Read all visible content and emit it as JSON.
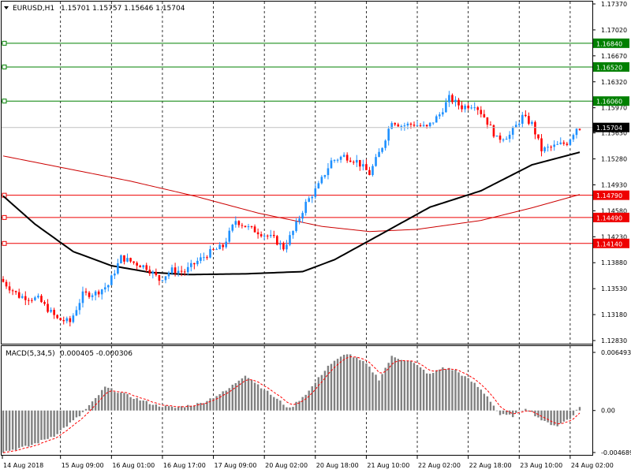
{
  "header": {
    "symbol_timeframe": "EURUSD,H1",
    "ohlc": "1.15701 1.15757 1.15646 1.15704"
  },
  "colors": {
    "background": "#ffffff",
    "grid": "#000000",
    "candle_up": "#1e90ff",
    "candle_down": "#ff0000",
    "ma_fast": "#000000",
    "ma_slow": "#cc0000",
    "support_line": "#ee0000",
    "resistance_line": "#008000",
    "macd_hist": "#808080",
    "macd_signal": "#ff0000"
  },
  "chart_data": [
    {
      "type": "candlestick",
      "symbol": "EURUSD",
      "timeframe": "H1",
      "ylim": [
        1.1283,
        1.1737
      ],
      "y_ticks": [
        "1.17370",
        "1.17020",
        "1.16670",
        "1.16320",
        "1.15970",
        "1.15630",
        "1.15280",
        "1.14930",
        "1.14580",
        "1.14230",
        "1.13880",
        "1.13530",
        "1.13180",
        "1.12830"
      ],
      "x_tick_labels": [
        "14 Aug 2018",
        "15 Aug 09:00",
        "16 Aug 01:00",
        "16 Aug 17:00",
        "17 Aug 09:00",
        "20 Aug 02:00",
        "20 Aug 18:00",
        "21 Aug 10:00",
        "22 Aug 02:00",
        "22 Aug 18:00",
        "23 Aug 10:00",
        "24 Aug 02:00"
      ],
      "price_anchors": [
        {
          "bar": 0,
          "price": 1.1366
        },
        {
          "bar": 6,
          "price": 1.1343
        },
        {
          "bar": 12,
          "price": 1.1339
        },
        {
          "bar": 18,
          "price": 1.1312
        },
        {
          "bar": 22,
          "price": 1.1308
        },
        {
          "bar": 26,
          "price": 1.1345
        },
        {
          "bar": 30,
          "price": 1.1347
        },
        {
          "bar": 34,
          "price": 1.1358
        },
        {
          "bar": 38,
          "price": 1.1395
        },
        {
          "bar": 42,
          "price": 1.1388
        },
        {
          "bar": 46,
          "price": 1.1382
        },
        {
          "bar": 50,
          "price": 1.1365
        },
        {
          "bar": 54,
          "price": 1.1378
        },
        {
          "bar": 58,
          "price": 1.1376
        },
        {
          "bar": 62,
          "price": 1.139
        },
        {
          "bar": 66,
          "price": 1.1402
        },
        {
          "bar": 70,
          "price": 1.141
        },
        {
          "bar": 74,
          "price": 1.1445
        },
        {
          "bar": 78,
          "price": 1.1435
        },
        {
          "bar": 82,
          "price": 1.1428
        },
        {
          "bar": 86,
          "price": 1.142
        },
        {
          "bar": 89,
          "price": 1.1408
        },
        {
          "bar": 92,
          "price": 1.143
        },
        {
          "bar": 96,
          "price": 1.1468
        },
        {
          "bar": 100,
          "price": 1.1492
        },
        {
          "bar": 104,
          "price": 1.1525
        },
        {
          "bar": 108,
          "price": 1.1532
        },
        {
          "bar": 112,
          "price": 1.1525
        },
        {
          "bar": 116,
          "price": 1.1508
        },
        {
          "bar": 120,
          "price": 1.1545
        },
        {
          "bar": 123,
          "price": 1.158
        },
        {
          "bar": 126,
          "price": 1.1573
        },
        {
          "bar": 130,
          "price": 1.1575
        },
        {
          "bar": 134,
          "price": 1.157
        },
        {
          "bar": 138,
          "price": 1.1588
        },
        {
          "bar": 141,
          "price": 1.161
        },
        {
          "bar": 145,
          "price": 1.1598
        },
        {
          "bar": 149,
          "price": 1.1602
        },
        {
          "bar": 152,
          "price": 1.1585
        },
        {
          "bar": 156,
          "price": 1.1555
        },
        {
          "bar": 160,
          "price": 1.156
        },
        {
          "bar": 164,
          "price": 1.1585
        },
        {
          "bar": 167,
          "price": 1.1575
        },
        {
          "bar": 170,
          "price": 1.154
        },
        {
          "bar": 174,
          "price": 1.1545
        },
        {
          "bar": 178,
          "price": 1.155
        },
        {
          "bar": 181,
          "price": 1.157
        }
      ],
      "ma_fast": [
        {
          "bar": 0,
          "price": 1.1478
        },
        {
          "bar": 10,
          "price": 1.144
        },
        {
          "bar": 22,
          "price": 1.1403
        },
        {
          "bar": 34,
          "price": 1.1384
        },
        {
          "bar": 46,
          "price": 1.1375
        },
        {
          "bar": 58,
          "price": 1.1372
        },
        {
          "bar": 76,
          "price": 1.1373
        },
        {
          "bar": 94,
          "price": 1.1376
        },
        {
          "bar": 104,
          "price": 1.1392
        },
        {
          "bar": 118,
          "price": 1.1425
        },
        {
          "bar": 134,
          "price": 1.1463
        },
        {
          "bar": 150,
          "price": 1.1485
        },
        {
          "bar": 166,
          "price": 1.152
        },
        {
          "bar": 181,
          "price": 1.1537
        }
      ],
      "ma_slow": [
        {
          "bar": 0,
          "price": 1.1532
        },
        {
          "bar": 20,
          "price": 1.1515
        },
        {
          "bar": 40,
          "price": 1.1498
        },
        {
          "bar": 60,
          "price": 1.1478
        },
        {
          "bar": 80,
          "price": 1.1455
        },
        {
          "bar": 100,
          "price": 1.1437
        },
        {
          "bar": 115,
          "price": 1.143
        },
        {
          "bar": 130,
          "price": 1.1433
        },
        {
          "bar": 150,
          "price": 1.1445
        },
        {
          "bar": 166,
          "price": 1.1462
        },
        {
          "bar": 181,
          "price": 1.148
        }
      ],
      "horizontal_levels": [
        {
          "price": 1.1684,
          "label": "1.16840",
          "kind": "resistance"
        },
        {
          "price": 1.1652,
          "label": "1.16520",
          "kind": "resistance"
        },
        {
          "price": 1.1606,
          "label": "1.16060",
          "kind": "resistance"
        },
        {
          "price": 1.1479,
          "label": "1.14790",
          "kind": "support"
        },
        {
          "price": 1.1449,
          "label": "1.14490",
          "kind": "support"
        },
        {
          "price": 1.1414,
          "label": "1.14140",
          "kind": "support"
        }
      ],
      "current_price": {
        "price": 1.15704,
        "label": "1.15704"
      }
    },
    {
      "type": "macd",
      "name": "MACD(5,34,5)",
      "values_label": "0.000405 -0.000306",
      "y_ticks": [
        "0.006493",
        "0.00",
        "-0.004689"
      ],
      "ylim": [
        -0.004689,
        0.006493
      ],
      "hist_anchors": [
        {
          "bar": 0,
          "v": -0.0046
        },
        {
          "bar": 8,
          "v": -0.004
        },
        {
          "bar": 16,
          "v": -0.0028
        },
        {
          "bar": 24,
          "v": -0.0006
        },
        {
          "bar": 28,
          "v": 0.0009
        },
        {
          "bar": 32,
          "v": 0.0026
        },
        {
          "bar": 36,
          "v": 0.0021
        },
        {
          "bar": 42,
          "v": 0.0013
        },
        {
          "bar": 48,
          "v": 0.0006
        },
        {
          "bar": 54,
          "v": 0.0003
        },
        {
          "bar": 62,
          "v": 0.0008
        },
        {
          "bar": 70,
          "v": 0.0022
        },
        {
          "bar": 76,
          "v": 0.004
        },
        {
          "bar": 84,
          "v": 0.0018
        },
        {
          "bar": 90,
          "v": 0.0002
        },
        {
          "bar": 96,
          "v": 0.0022
        },
        {
          "bar": 102,
          "v": 0.005
        },
        {
          "bar": 108,
          "v": 0.0064
        },
        {
          "bar": 114,
          "v": 0.0052
        },
        {
          "bar": 118,
          "v": 0.0035
        },
        {
          "bar": 122,
          "v": 0.006
        },
        {
          "bar": 128,
          "v": 0.0055
        },
        {
          "bar": 134,
          "v": 0.004
        },
        {
          "bar": 138,
          "v": 0.0048
        },
        {
          "bar": 142,
          "v": 0.0045
        },
        {
          "bar": 148,
          "v": 0.003
        },
        {
          "bar": 152,
          "v": 0.0016
        },
        {
          "bar": 156,
          "v": -0.0005
        },
        {
          "bar": 160,
          "v": -0.0006
        },
        {
          "bar": 164,
          "v": 0.0003
        },
        {
          "bar": 170,
          "v": -0.0013
        },
        {
          "bar": 174,
          "v": -0.0017
        },
        {
          "bar": 178,
          "v": -0.0008
        },
        {
          "bar": 181,
          "v": 0.0004
        }
      ]
    }
  ]
}
